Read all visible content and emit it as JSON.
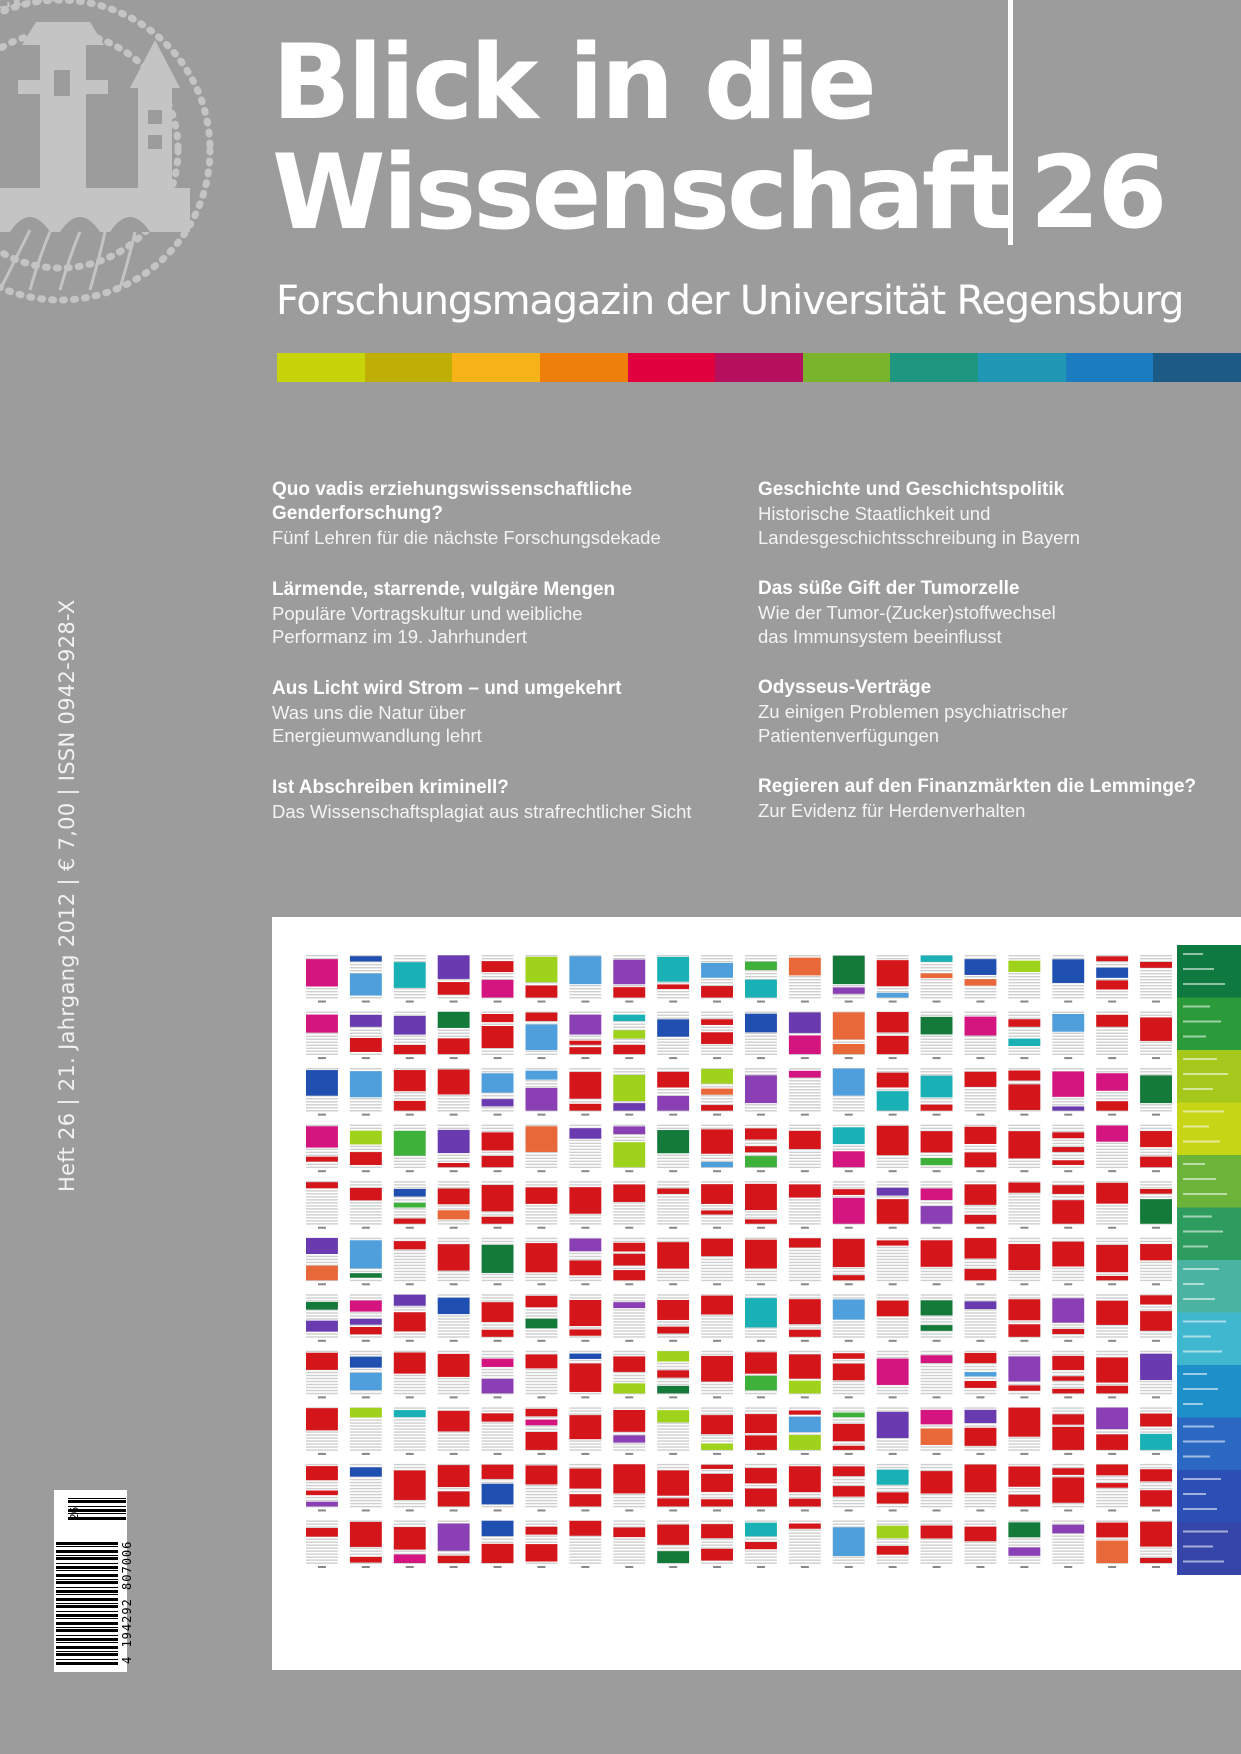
{
  "cover": {
    "background_color": "#9c9c9c",
    "title_line1": "Blick in die",
    "title_line2": "Wissenschaft",
    "issue_number": "26",
    "subtitle": "Forschungsmagazin der Universität Regensburg",
    "seal_text": "SIGILLVM VNIVERSITATIS RATISBONENSIS"
  },
  "color_bar": {
    "colors": [
      "#c8d40a",
      "#bfae06",
      "#f6b318",
      "#ee7f0a",
      "#e2003f",
      "#b5115e",
      "#7ab42c",
      "#1d9780",
      "#1f97b5",
      "#1c7cc1",
      "#1d5b87"
    ]
  },
  "articles": {
    "left": [
      {
        "title": "Quo vadis erziehungswissenschaftliche Genderforschung?",
        "subtitle": "Fünf Lehren für die nächste Forschungsdekade"
      },
      {
        "title": "Lärmende, starrende, vulgäre Mengen",
        "subtitle": "Populäre Vortragskultur und weibliche Performanz im 19. Jahrhundert"
      },
      {
        "title": "Aus Licht wird Strom – und umgekehrt",
        "subtitle": "Was uns die Natur über Energieumwandlung lehrt"
      },
      {
        "title": "Ist Abschreiben kriminell?",
        "subtitle": "Das Wissenschaftsplagiat aus strafrechtlicher Sicht"
      }
    ],
    "right": [
      {
        "title": "Geschichte und Geschichtspolitik",
        "subtitle": "Historische Staatlichkeit und Landesgeschichtsschreibung in Bayern"
      },
      {
        "title": "Das süße Gift der Tumorzelle",
        "subtitle": "Wie der Tumor-(Zucker)stoffwechsel das Immunsystem beeinflusst"
      },
      {
        "title": "Odysseus-Verträge",
        "subtitle": "Zu einigen Problemen psychiatrischer Patientenverfügungen"
      },
      {
        "title": "Regieren auf den Finanzmärkten die Lemminge?",
        "subtitle": "Zur Evidenz für Herdenverhalten"
      }
    ]
  },
  "spine": {
    "text": "Heft 26 | 21. Jahrgang 2012 | € 7,00 | ISSN 0942-928-X"
  },
  "barcode": {
    "main_digits": "4 194292 807006",
    "addon_digits": "26"
  },
  "cover_image": {
    "description": "Plagiarism visualization: grid of document pages with color-coded highlighted passages and a color legend column",
    "rows": 11,
    "columns": 20,
    "palette": {
      "red": "#d4161b",
      "blue": "#1f4fb0",
      "light_blue": "#4f9fdc",
      "teal": "#19b1b6",
      "green": "#3eb13a",
      "dark_green": "#137a3a",
      "purple": "#8a3fb5",
      "magenta": "#d4147f",
      "violet": "#6a3ab0",
      "lime": "#9fd21a",
      "orange": "#e8683a",
      "gray_text": "#c8c8c8"
    },
    "legend_gradient": [
      "#0f7a3f",
      "#2a9a3a",
      "#a6c81c",
      "#c6d516",
      "#6cb33a",
      "#2e9c5e",
      "#4bb3a2",
      "#3fb7cf",
      "#1f8fc9",
      "#2b68c2",
      "#2c4fb5",
      "#3545a8"
    ]
  }
}
